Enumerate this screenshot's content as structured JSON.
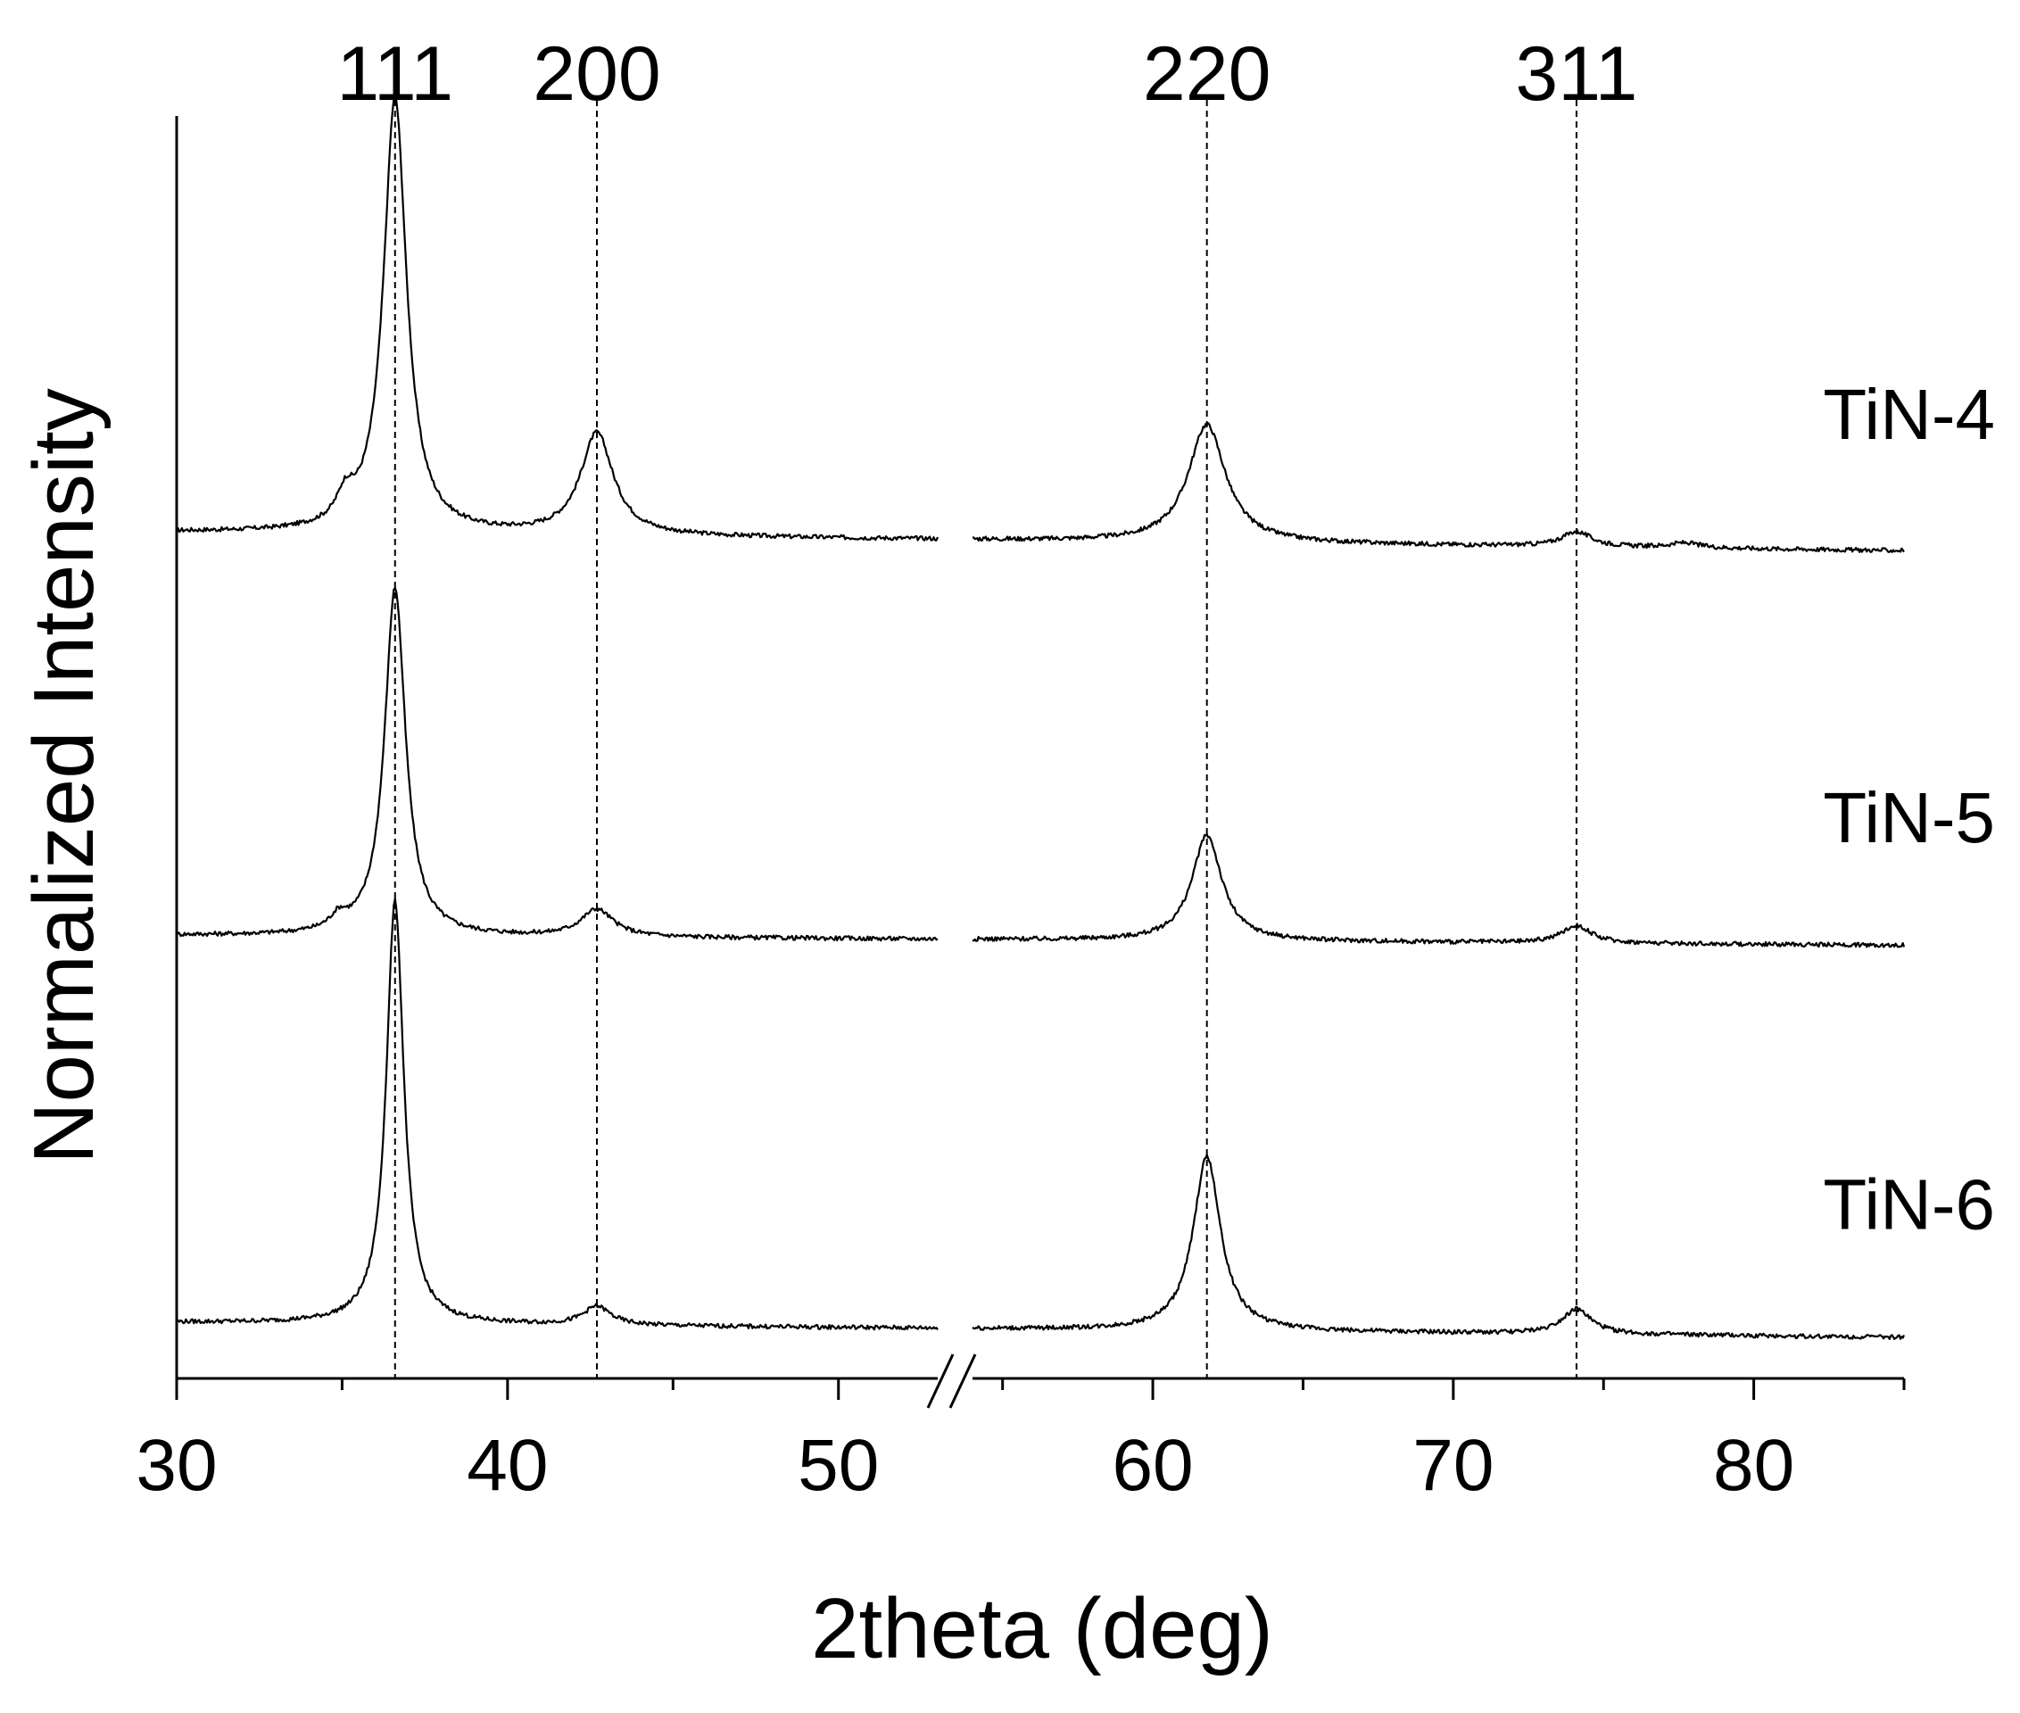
{
  "chart_data": {
    "type": "line",
    "title": "",
    "xlabel": "2theta (deg)",
    "ylabel": "Normalized Intensity",
    "x_axis_break": [
      53,
      54
    ],
    "xlim": [
      30,
      85
    ],
    "x_major_ticks": [
      30,
      40,
      50,
      60,
      70,
      80
    ],
    "x_tick_labels": [
      "30",
      "40",
      "50",
      "60",
      "70",
      "80"
    ],
    "y_ticks": "none",
    "grid": false,
    "legend": "none",
    "reference_lines": [
      {
        "label": "111",
        "x": 36.6
      },
      {
        "label": "200",
        "x": 42.7
      },
      {
        "label": "220",
        "x": 61.8
      },
      {
        "label": "311",
        "x": 74.1
      }
    ],
    "series": [
      {
        "name": "TiN-4",
        "baseline": 0.68,
        "baseline_drift": -0.015,
        "peaks": [
          {
            "x": 35.1,
            "height": 0.02,
            "width": 0.3
          },
          {
            "x": 36.6,
            "height": 0.35,
            "width": 0.42
          },
          {
            "x": 42.7,
            "height": 0.082,
            "width": 0.6
          },
          {
            "x": 61.8,
            "height": 0.095,
            "width": 0.75
          },
          {
            "x": 74.1,
            "height": 0.012,
            "width": 0.6
          },
          {
            "x": 77.7,
            "height": 0.004,
            "width": 0.6
          }
        ]
      },
      {
        "name": "TiN-5",
        "baseline": 0.356,
        "baseline_drift": -0.008,
        "peaks": [
          {
            "x": 34.9,
            "height": 0.01,
            "width": 0.3
          },
          {
            "x": 36.6,
            "height": 0.28,
            "width": 0.38
          },
          {
            "x": 42.7,
            "height": 0.022,
            "width": 0.6
          },
          {
            "x": 61.8,
            "height": 0.085,
            "width": 0.6
          },
          {
            "x": 74.1,
            "height": 0.014,
            "width": 0.6
          }
        ]
      },
      {
        "name": "TiN-6",
        "baseline": 0.045,
        "baseline_drift": -0.012,
        "peaks": [
          {
            "x": 36.6,
            "height": 0.34,
            "width": 0.32
          },
          {
            "x": 42.7,
            "height": 0.015,
            "width": 0.5
          },
          {
            "x": 61.8,
            "height": 0.14,
            "width": 0.55
          },
          {
            "x": 74.1,
            "height": 0.02,
            "width": 0.6
          }
        ]
      }
    ],
    "colors": {
      "line": "#000000",
      "background": "#ffffff"
    }
  }
}
